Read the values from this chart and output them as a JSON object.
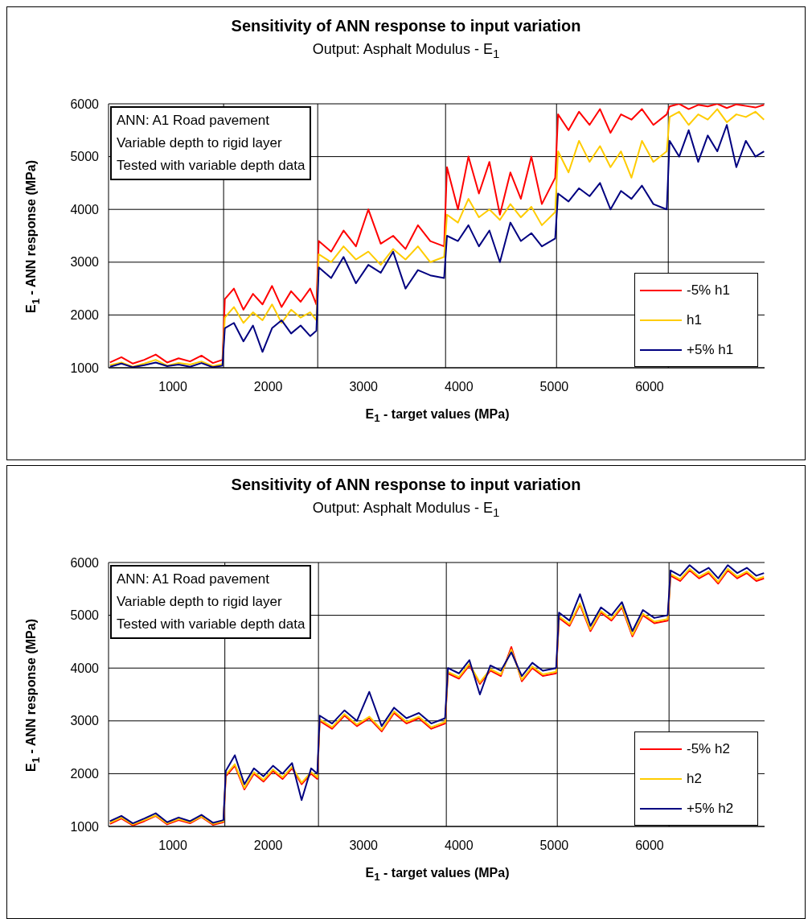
{
  "chart_data": [
    {
      "type": "line",
      "title": "Sensitivity of ANN response to input variation",
      "subtitle": "Output: Asphalt Modulus - E$_{1}$",
      "xlabel": "E$_{1}$ - target values (MPa)",
      "ylabel": "E$_{1}$ - ANN response (MPa)",
      "annotations": [
        "ANN: A1 Road pavement",
        "Variable depth to rigid layer",
        "Tested with variable depth data"
      ],
      "xlim": [
        325,
        7206
      ],
      "xticks": [
        1000,
        2000,
        3000,
        4000,
        5000,
        6000
      ],
      "ylim": [
        1000,
        6000
      ],
      "yticks": [
        1000,
        2000,
        3000,
        4000,
        5000,
        6000
      ],
      "grid": "y",
      "legend": "bottom right",
      "line_style": "solid",
      "marker": "none",
      "ref_lines": [
        {
          "axis": "x",
          "value": 1532,
          "color": "#000000"
        },
        {
          "axis": "x",
          "value": 2519,
          "color": "#000000"
        },
        {
          "axis": "x",
          "value": 3860,
          "color": "#000000"
        },
        {
          "axis": "x",
          "value": 5024,
          "color": "#000000"
        },
        {
          "axis": "x",
          "value": 6196,
          "color": "#000000"
        }
      ],
      "x": [
        340,
        460,
        580,
        700,
        820,
        940,
        1060,
        1180,
        1300,
        1420,
        1520,
        1545,
        1640,
        1740,
        1840,
        1940,
        2040,
        2140,
        2240,
        2340,
        2440,
        2505,
        2530,
        2660,
        2790,
        2920,
        3050,
        3180,
        3310,
        3440,
        3570,
        3700,
        3845,
        3875,
        3990,
        4100,
        4210,
        4320,
        4430,
        4540,
        4650,
        4760,
        4870,
        5010,
        5040,
        5150,
        5260,
        5370,
        5480,
        5590,
        5700,
        5810,
        5920,
        6040,
        6180,
        6210,
        6310,
        6410,
        6510,
        6610,
        6710,
        6810,
        6910,
        7010,
        7110,
        7200
      ],
      "series": [
        {
          "name": "-5% h1",
          "color": "#ff0000",
          "values": [
            1100,
            1200,
            1080,
            1150,
            1250,
            1100,
            1180,
            1120,
            1230,
            1090,
            1150,
            2300,
            2500,
            2100,
            2400,
            2200,
            2550,
            2150,
            2450,
            2250,
            2500,
            2200,
            3400,
            3200,
            3600,
            3300,
            4000,
            3350,
            3500,
            3250,
            3700,
            3400,
            3300,
            4800,
            4000,
            5000,
            4300,
            4900,
            3900,
            4700,
            4200,
            5000,
            4100,
            4600,
            5800,
            5500,
            5850,
            5600,
            5900,
            5450,
            5800,
            5700,
            5900,
            5600,
            5800,
            5950,
            6000,
            5900,
            5980,
            5950,
            6000,
            5920,
            5990,
            5960,
            5930,
            5980
          ]
        },
        {
          "name": "h1",
          "color": "#ffcc00",
          "values": [
            1050,
            1100,
            1020,
            1080,
            1150,
            1040,
            1090,
            1060,
            1120,
            1030,
            1070,
            1950,
            2150,
            1850,
            2050,
            1900,
            2200,
            1850,
            2100,
            1950,
            2050,
            1900,
            3150,
            3000,
            3300,
            3050,
            3200,
            2950,
            3250,
            3050,
            3300,
            3000,
            3100,
            3900,
            3750,
            4200,
            3850,
            4000,
            3800,
            4100,
            3850,
            4050,
            3700,
            3950,
            5100,
            4700,
            5300,
            4900,
            5200,
            4800,
            5100,
            4600,
            5300,
            4900,
            5100,
            5750,
            5850,
            5600,
            5800,
            5700,
            5900,
            5650,
            5800,
            5750,
            5850,
            5700
          ]
        },
        {
          "name": "+5% h1",
          "color": "#000080",
          "values": [
            1020,
            1080,
            1010,
            1050,
            1100,
            1030,
            1060,
            1020,
            1090,
            1010,
            1040,
            1750,
            1850,
            1500,
            1800,
            1300,
            1750,
            1900,
            1650,
            1800,
            1600,
            1700,
            2900,
            2700,
            3100,
            2600,
            2950,
            2800,
            3200,
            2500,
            2850,
            2750,
            2700,
            3500,
            3400,
            3700,
            3300,
            3600,
            3000,
            3750,
            3400,
            3550,
            3300,
            3450,
            4300,
            4150,
            4400,
            4250,
            4500,
            4000,
            4350,
            4200,
            4450,
            4100,
            4000,
            5300,
            5000,
            5500,
            4900,
            5400,
            5100,
            5600,
            4800,
            5300,
            5000,
            5100
          ]
        }
      ]
    },
    {
      "type": "line",
      "title": "Sensitivity of ANN response to input variation",
      "subtitle": "Output: Asphalt Modulus - E$_{1}$",
      "xlabel": "E$_{1}$ - target values (MPa)",
      "ylabel": "E$_{1}$ - ANN response (MPa)",
      "annotations": [
        "ANN: A1 Road pavement",
        "Variable depth to rigid layer",
        "Tested with variable depth data"
      ],
      "xlim": [
        325,
        7206
      ],
      "xticks": [
        1000,
        2000,
        3000,
        4000,
        5000,
        6000
      ],
      "ylim": [
        1000,
        6000
      ],
      "yticks": [
        1000,
        2000,
        3000,
        4000,
        5000,
        6000
      ],
      "grid": "y",
      "legend": "bottom right",
      "line_style": "solid",
      "marker": "none",
      "ref_lines": [
        {
          "axis": "x",
          "value": 1545,
          "color": "#000000"
        },
        {
          "axis": "x",
          "value": 2527,
          "color": "#000000"
        },
        {
          "axis": "x",
          "value": 3868,
          "color": "#000000"
        },
        {
          "axis": "x",
          "value": 5032,
          "color": "#000000"
        },
        {
          "axis": "x",
          "value": 6204,
          "color": "#000000"
        }
      ],
      "x": [
        340,
        460,
        580,
        700,
        820,
        940,
        1060,
        1180,
        1300,
        1420,
        1530,
        1555,
        1650,
        1750,
        1850,
        1950,
        2050,
        2150,
        2250,
        2350,
        2450,
        2515,
        2540,
        2670,
        2800,
        2930,
        3060,
        3190,
        3320,
        3450,
        3580,
        3710,
        3855,
        3885,
        4000,
        4110,
        4220,
        4330,
        4440,
        4550,
        4660,
        4770,
        4880,
        5020,
        5050,
        5160,
        5270,
        5380,
        5490,
        5600,
        5710,
        5820,
        5930,
        6050,
        6190,
        6220,
        6320,
        6420,
        6520,
        6620,
        6720,
        6820,
        6920,
        7020,
        7120,
        7200
      ],
      "series": [
        {
          "name": "-5% h2",
          "color": "#ff0000",
          "values": [
            1050,
            1150,
            1020,
            1100,
            1200,
            1040,
            1120,
            1060,
            1180,
            1030,
            1080,
            1950,
            2150,
            1700,
            2000,
            1850,
            2050,
            1900,
            2100,
            1800,
            2000,
            1900,
            3000,
            2850,
            3100,
            2900,
            3050,
            2800,
            3150,
            2950,
            3050,
            2850,
            2950,
            3900,
            3800,
            4050,
            3700,
            3950,
            3850,
            4400,
            3750,
            4000,
            3850,
            3900,
            4950,
            4800,
            5200,
            4700,
            5050,
            4900,
            5150,
            4600,
            5000,
            4850,
            4900,
            5750,
            5650,
            5850,
            5700,
            5800,
            5600,
            5850,
            5700,
            5800,
            5650,
            5700
          ]
        },
        {
          "name": "h2",
          "color": "#ffcc00",
          "values": [
            1070,
            1170,
            1040,
            1120,
            1210,
            1060,
            1140,
            1080,
            1190,
            1050,
            1100,
            1980,
            2180,
            1730,
            2030,
            1880,
            2080,
            1930,
            2130,
            1830,
            2030,
            1930,
            3030,
            2880,
            3130,
            2930,
            3080,
            2830,
            3180,
            2980,
            3080,
            2880,
            2980,
            3930,
            3830,
            4080,
            3730,
            3980,
            3880,
            4350,
            3780,
            4030,
            3880,
            3930,
            4980,
            4830,
            5230,
            4730,
            5080,
            4930,
            5180,
            4630,
            5030,
            4880,
            4930,
            5780,
            5680,
            5880,
            5730,
            5830,
            5630,
            5880,
            5730,
            5830,
            5680,
            5730
          ]
        },
        {
          "name": "+5% h2",
          "color": "#000080",
          "values": [
            1100,
            1200,
            1060,
            1150,
            1250,
            1080,
            1170,
            1100,
            1220,
            1070,
            1120,
            2050,
            2350,
            1800,
            2100,
            1950,
            2150,
            2000,
            2200,
            1500,
            2100,
            2000,
            3100,
            2950,
            3200,
            3000,
            3550,
            2900,
            3250,
            3050,
            3150,
            2950,
            3050,
            4000,
            3900,
            4150,
            3500,
            4050,
            3950,
            4300,
            3850,
            4100,
            3950,
            4000,
            5050,
            4900,
            5400,
            4800,
            5150,
            5000,
            5250,
            4700,
            5100,
            4950,
            5000,
            5850,
            5750,
            5950,
            5800,
            5900,
            5700,
            5950,
            5800,
            5900,
            5750,
            5800
          ]
        }
      ]
    }
  ]
}
